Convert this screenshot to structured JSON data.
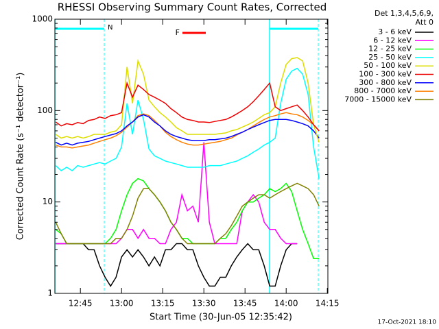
{
  "chart_data": {
    "type": "line",
    "title": "RHESSI Observing Summary Count Rates, Corrected",
    "x_label": "Start Time (30-Jun-05 12:35:42)",
    "y_label": "Corrected Count Rate (s⁻¹ detector⁻¹)",
    "legend_header": [
      "Det 1,3,4,5,6,9,",
      "Att 0"
    ],
    "footer": "17-Oct-2021 18:10",
    "log_y": true,
    "xlim": [
      35.7,
      135.2
    ],
    "ylim": [
      1,
      1000
    ],
    "xticks": [
      {
        "value": 45,
        "label": "12:45"
      },
      {
        "value": 60,
        "label": "13:00"
      },
      {
        "value": 75,
        "label": "13:15"
      },
      {
        "value": 90,
        "label": "13:30"
      },
      {
        "value": 105,
        "label": "13:45"
      },
      {
        "value": 120,
        "label": "14:00"
      },
      {
        "value": 135,
        "label": "14:15"
      }
    ],
    "yticks": [
      1,
      10,
      100,
      1000
    ],
    "attenuator": {
      "label": "N",
      "color": "#00ffff",
      "intervals": [
        [
          35.7,
          53.7
        ],
        [
          113.95,
          131.7
        ]
      ]
    },
    "flare": {
      "label": "F",
      "color": "#ff0000",
      "start": 82.2,
      "end": 90.7
    },
    "x": [
      36,
      38,
      40,
      42,
      44,
      46,
      48,
      50,
      52,
      54,
      56,
      58,
      60,
      62,
      64,
      66,
      68,
      70,
      72,
      74,
      76,
      78,
      80,
      82,
      84,
      86,
      88,
      90,
      92,
      94,
      96,
      98,
      100,
      102,
      104,
      106,
      108,
      110,
      112,
      114,
      116,
      118,
      120,
      122,
      124,
      126,
      128,
      130,
      132
    ],
    "series": [
      {
        "name": "3 - 6 keV",
        "color": "#000000",
        "values": [
          3.5,
          3.5,
          3.5,
          3.5,
          3.5,
          3.5,
          3,
          3,
          2,
          1.5,
          1.2,
          1.5,
          2.5,
          3,
          2.5,
          3,
          2.5,
          2,
          2.5,
          2,
          3,
          3,
          3.5,
          3.5,
          3,
          3,
          2,
          1.5,
          1.2,
          1.2,
          1.5,
          1.5,
          2,
          2.5,
          3,
          3.5,
          3,
          3,
          2,
          1.2,
          1.2,
          2,
          3,
          3.5,
          3.5,
          null,
          null,
          null,
          null
        ]
      },
      {
        "name": "6 - 12 keV",
        "color": "#ff00ff",
        "values": [
          3.5,
          3.5,
          3.5,
          3.5,
          3.5,
          3.5,
          3.5,
          3.5,
          3.5,
          3.5,
          3.5,
          3.5,
          4,
          5,
          5,
          4,
          5,
          4,
          4,
          3.5,
          3.5,
          5,
          6,
          12,
          8,
          9,
          6,
          45,
          6,
          3.5,
          3.5,
          3.5,
          3.5,
          3.5,
          8,
          10,
          12,
          10,
          6,
          5,
          5,
          4,
          3.5,
          3.5,
          3.5,
          null,
          null,
          null,
          null
        ]
      },
      {
        "name": "12 - 25 keV",
        "color": "#00ff00",
        "values": [
          5,
          4.5,
          3.5,
          3.5,
          3.5,
          3.5,
          3.5,
          3.5,
          3.5,
          3.5,
          4,
          5,
          8,
          12,
          16,
          18,
          17,
          14,
          12,
          10,
          8,
          6,
          5,
          4,
          4,
          3.5,
          3.5,
          3.5,
          3.5,
          3.5,
          4,
          4,
          5,
          6,
          8,
          10,
          10,
          11,
          12,
          14,
          13,
          14,
          16,
          13,
          8,
          5,
          3.5,
          2.4,
          2.4
        ]
      },
      {
        "name": "25 - 50 keV",
        "color": "#00ffff",
        "values": [
          25,
          22,
          24,
          22,
          25,
          24,
          25,
          26,
          27,
          26,
          28,
          30,
          40,
          120,
          55,
          130,
          80,
          38,
          32,
          30,
          28,
          27,
          26,
          25,
          24,
          24,
          24,
          24,
          25,
          25,
          25,
          26,
          27,
          28,
          30,
          32,
          35,
          38,
          42,
          45,
          50,
          120,
          220,
          270,
          290,
          250,
          150,
          40,
          18
        ]
      },
      {
        "name": "50 - 100 keV",
        "color": "#dddd00",
        "values": [
          55,
          50,
          52,
          50,
          52,
          50,
          52,
          55,
          55,
          55,
          58,
          60,
          70,
          300,
          120,
          350,
          250,
          130,
          110,
          95,
          85,
          75,
          65,
          60,
          55,
          55,
          55,
          55,
          55,
          55,
          56,
          57,
          60,
          62,
          66,
          70,
          75,
          82,
          90,
          95,
          110,
          200,
          320,
          370,
          380,
          350,
          200,
          70,
          45
        ]
      },
      {
        "name": "100 - 300 keV",
        "color": "#ee0000",
        "values": [
          75,
          68,
          72,
          70,
          74,
          72,
          78,
          80,
          85,
          82,
          88,
          90,
          95,
          200,
          140,
          190,
          170,
          150,
          140,
          130,
          120,
          105,
          95,
          85,
          80,
          78,
          75,
          75,
          74,
          76,
          78,
          80,
          85,
          92,
          100,
          110,
          125,
          145,
          170,
          200,
          110,
          100,
          105,
          110,
          115,
          100,
          85,
          70,
          60
        ]
      },
      {
        "name": "300 - 800 keV",
        "color": "#0000ff",
        "values": [
          45,
          42,
          44,
          42,
          44,
          45,
          46,
          48,
          50,
          52,
          54,
          56,
          60,
          68,
          75,
          85,
          90,
          85,
          75,
          68,
          60,
          55,
          52,
          50,
          48,
          47,
          47,
          47,
          48,
          48,
          49,
          50,
          52,
          55,
          58,
          62,
          66,
          70,
          74,
          78,
          80,
          80,
          80,
          78,
          75,
          72,
          68,
          60,
          50
        ]
      },
      {
        "name": "800 - 7000 keV",
        "color": "#ff8000",
        "values": [
          42,
          40,
          40,
          39,
          40,
          41,
          42,
          44,
          46,
          48,
          50,
          53,
          58,
          66,
          75,
          88,
          92,
          88,
          78,
          68,
          58,
          52,
          48,
          45,
          43,
          42,
          42,
          43,
          44,
          45,
          46,
          48,
          50,
          54,
          58,
          62,
          68,
          74,
          80,
          85,
          88,
          92,
          95,
          92,
          90,
          85,
          78,
          70,
          60
        ]
      },
      {
        "name": "7000 - 15000 keV",
        "color": "#808000",
        "values": [
          6,
          4.5,
          3.5,
          3.5,
          3.5,
          3.5,
          3.5,
          3.5,
          3.5,
          3.5,
          3.5,
          4,
          4,
          5,
          7,
          11,
          14,
          14,
          12,
          10,
          8,
          6,
          5,
          4,
          3.5,
          3.5,
          3.5,
          3.5,
          3.5,
          3.5,
          4,
          4.5,
          5.5,
          7,
          9,
          10,
          11,
          12,
          12,
          11,
          12,
          13,
          14,
          15,
          16,
          15,
          14,
          12,
          9
        ]
      }
    ]
  }
}
